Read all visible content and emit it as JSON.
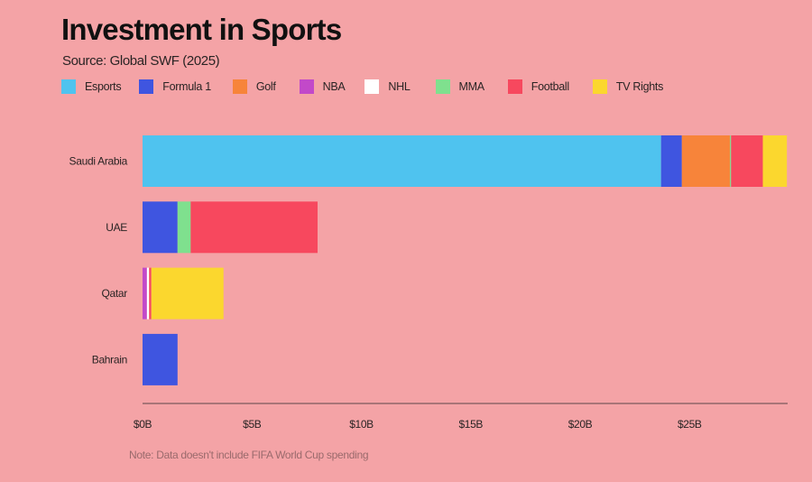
{
  "chart_data": {
    "type": "bar",
    "orientation": "horizontal",
    "stacked": true,
    "title": "Investment in Sports",
    "subtitle": "Source: Global SWF (2025)",
    "note": "Note: Data doesn't include FIFA World Cup spending",
    "categories": [
      "Saudi Arabia",
      "UAE",
      "Qatar",
      "Bahrain"
    ],
    "series": [
      {
        "name": "Esports",
        "color": "#4fc3ef",
        "values": [
          23.7,
          0,
          0,
          0
        ]
      },
      {
        "name": "Formula 1",
        "color": "#3f55e0",
        "values": [
          0.95,
          1.6,
          0,
          1.6
        ]
      },
      {
        "name": "Golf",
        "color": "#f7843a",
        "values": [
          2.2,
          0,
          0,
          0
        ]
      },
      {
        "name": "NBA",
        "color": "#c249c9",
        "values": [
          0,
          0,
          0.2,
          0
        ]
      },
      {
        "name": "NHL",
        "color": "#ffffff",
        "values": [
          0,
          0,
          0.1,
          0
        ]
      },
      {
        "name": "MMA",
        "color": "#7fe08e",
        "values": [
          0.05,
          0.6,
          0,
          0
        ]
      },
      {
        "name": "Football",
        "color": "#f7485e",
        "values": [
          1.45,
          5.8,
          0.1,
          0
        ]
      },
      {
        "name": "TV Rights",
        "color": "#fbd72e",
        "values": [
          1.1,
          0,
          3.3,
          0
        ]
      }
    ],
    "xlim": [
      0,
      30
    ],
    "xticks": [
      0,
      5,
      10,
      15,
      20,
      25
    ],
    "xtick_labels": [
      "$0B",
      "$5B",
      "$10B",
      "$15B",
      "$20B",
      "$25B"
    ],
    "xlabel": "",
    "ylabel": "",
    "grid": false,
    "legend_position": "top-left",
    "background": "#f4a3a6"
  }
}
